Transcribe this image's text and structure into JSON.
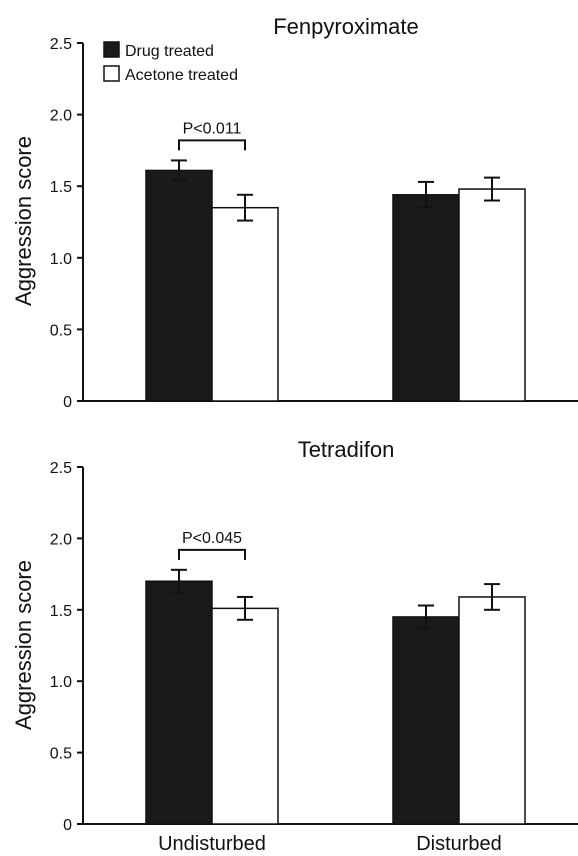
{
  "legend": {
    "drug_label": "Drug treated",
    "acetone_label": "Acetone treated",
    "drug_color": "#1a1a1a",
    "acetone_color": "#ffffff"
  },
  "chart_data": [
    {
      "type": "bar",
      "title": "Fenpyroximate",
      "ylabel": "Aggression score",
      "ylim": [
        0,
        2.5
      ],
      "yticks": [
        "0",
        "0.5",
        "1.0",
        "1.5",
        "2.0",
        "2.5"
      ],
      "categories": [
        "Undisturbed",
        "Disturbed"
      ],
      "series": [
        {
          "name": "Drug treated",
          "values": [
            1.61,
            1.44
          ],
          "errors": [
            0.07,
            0.09
          ]
        },
        {
          "name": "Acetone treated",
          "values": [
            1.35,
            1.48
          ],
          "errors": [
            0.09,
            0.08
          ]
        }
      ],
      "annotation": {
        "text": "P<0.011",
        "category_index": 0
      },
      "legend": "top-left"
    },
    {
      "type": "bar",
      "title": "Tetradifon",
      "ylabel": "Aggression score",
      "ylim": [
        0,
        2.5
      ],
      "yticks": [
        "0",
        "0.5",
        "1.0",
        "1.5",
        "2.0",
        "2.5"
      ],
      "categories": [
        "Undisturbed",
        "Disturbed"
      ],
      "series": [
        {
          "name": "Drug treated",
          "values": [
            1.7,
            1.45
          ],
          "errors": [
            0.08,
            0.08
          ]
        },
        {
          "name": "Acetone treated",
          "values": [
            1.51,
            1.59
          ],
          "errors": [
            0.08,
            0.09
          ]
        }
      ],
      "annotation": {
        "text": "P<0.045",
        "category_index": 0
      }
    }
  ]
}
